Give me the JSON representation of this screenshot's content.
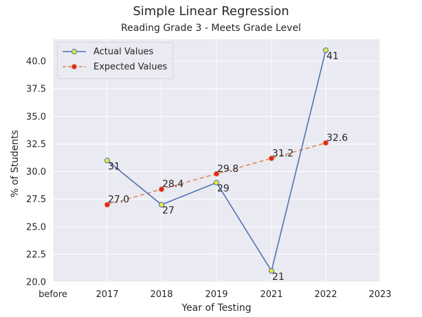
{
  "title": "Simple Linear Regression",
  "subtitle": "Reading Grade 3 - Meets Grade Level",
  "chart_data": {
    "type": "line",
    "title": "Simple Linear Regression",
    "subtitle": "Reading Grade 3 - Meets Grade Level",
    "xlabel": "Year of Testing",
    "ylabel": "% of Students",
    "x_ticks": [
      "before",
      "2017",
      "2018",
      "2019",
      "2021",
      "2022",
      "2023"
    ],
    "categories": [
      "2017",
      "2018",
      "2019",
      "2021",
      "2022"
    ],
    "ylim": [
      20.0,
      42.0
    ],
    "y_ticks": [
      "20.0",
      "22.5",
      "25.0",
      "27.5",
      "30.0",
      "32.5",
      "35.0",
      "37.5",
      "40.0"
    ],
    "grid": true,
    "legend": "top-left",
    "series": [
      {
        "name": "Actual Values",
        "color": "#4c72b0",
        "marker_fill": "#e6e63c",
        "style": "solid",
        "values": [
          31,
          27,
          29,
          21,
          41
        ],
        "labels": [
          "31",
          "27",
          "29",
          "21",
          "41"
        ]
      },
      {
        "name": "Expected Values",
        "color": "#dd8452",
        "marker_fill": "#e0241c",
        "style": "dashed",
        "values": [
          27.0,
          28.4,
          29.8,
          31.2,
          32.6
        ],
        "labels": [
          "27.0",
          "28.4",
          "29.8",
          "31.2",
          "32.6"
        ]
      }
    ]
  }
}
